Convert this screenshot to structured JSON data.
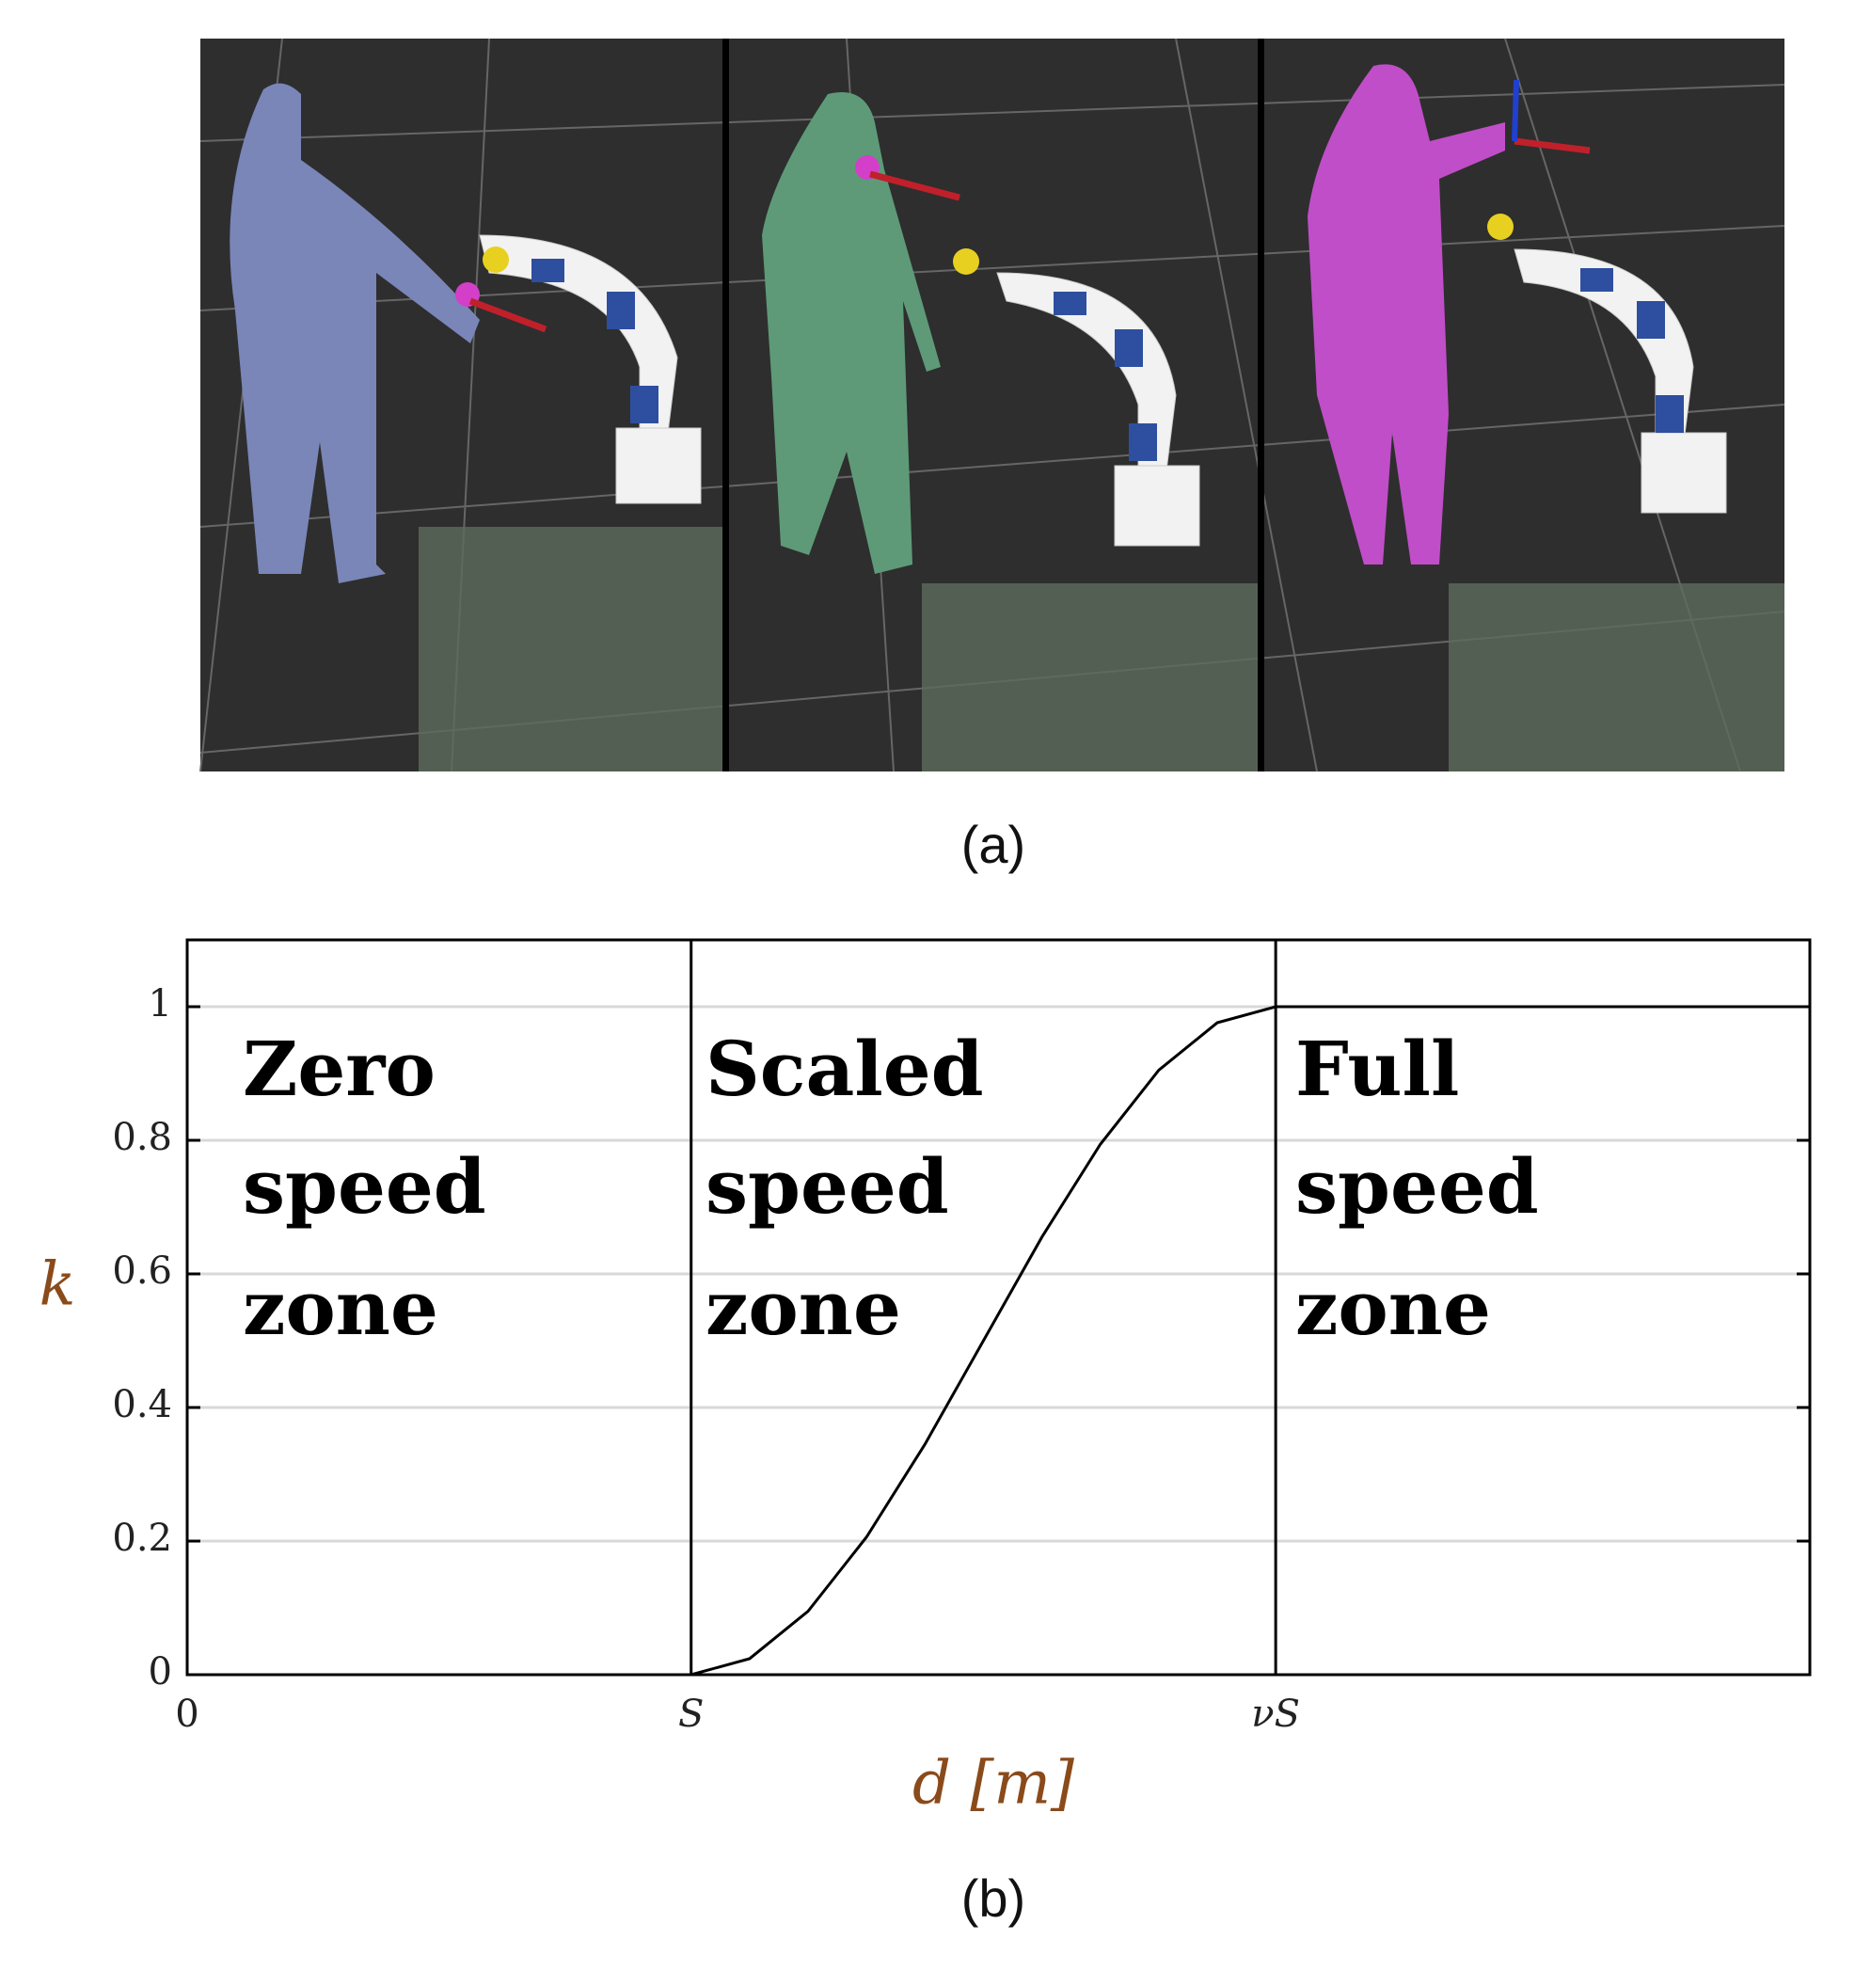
{
  "panel_a": {
    "caption": "(a)"
  },
  "chart_data": {
    "type": "line",
    "caption": "(b)",
    "xlabel": "d [m]",
    "ylabel": "k",
    "x": [
      0,
      1,
      1.116,
      1.232,
      1.348,
      1.464,
      1.58,
      1.696,
      1.812,
      1.928,
      2.044,
      2.16,
      3.22
    ],
    "series": [
      {
        "color": "#000000",
        "values": [
          0,
          0,
          0.024,
          0.095,
          0.206,
          0.345,
          0.5,
          0.655,
          0.794,
          0.905,
          0.976,
          1,
          1
        ]
      }
    ],
    "xlim": [
      0,
      3.22
    ],
    "ylim": [
      0,
      1.1
    ],
    "xticks": [
      0,
      {
        "value": 1,
        "label": "S"
      },
      {
        "value": 2.16,
        "label": "νS"
      }
    ],
    "yticks": [
      0,
      0.2,
      0.4,
      0.6,
      0.8,
      1
    ],
    "grid": true,
    "annotations": [
      [
        "Zero",
        "speed",
        "zone"
      ],
      [
        "Scaled",
        "speed",
        "zone"
      ],
      [
        "Full",
        "speed",
        "zone"
      ]
    ]
  }
}
